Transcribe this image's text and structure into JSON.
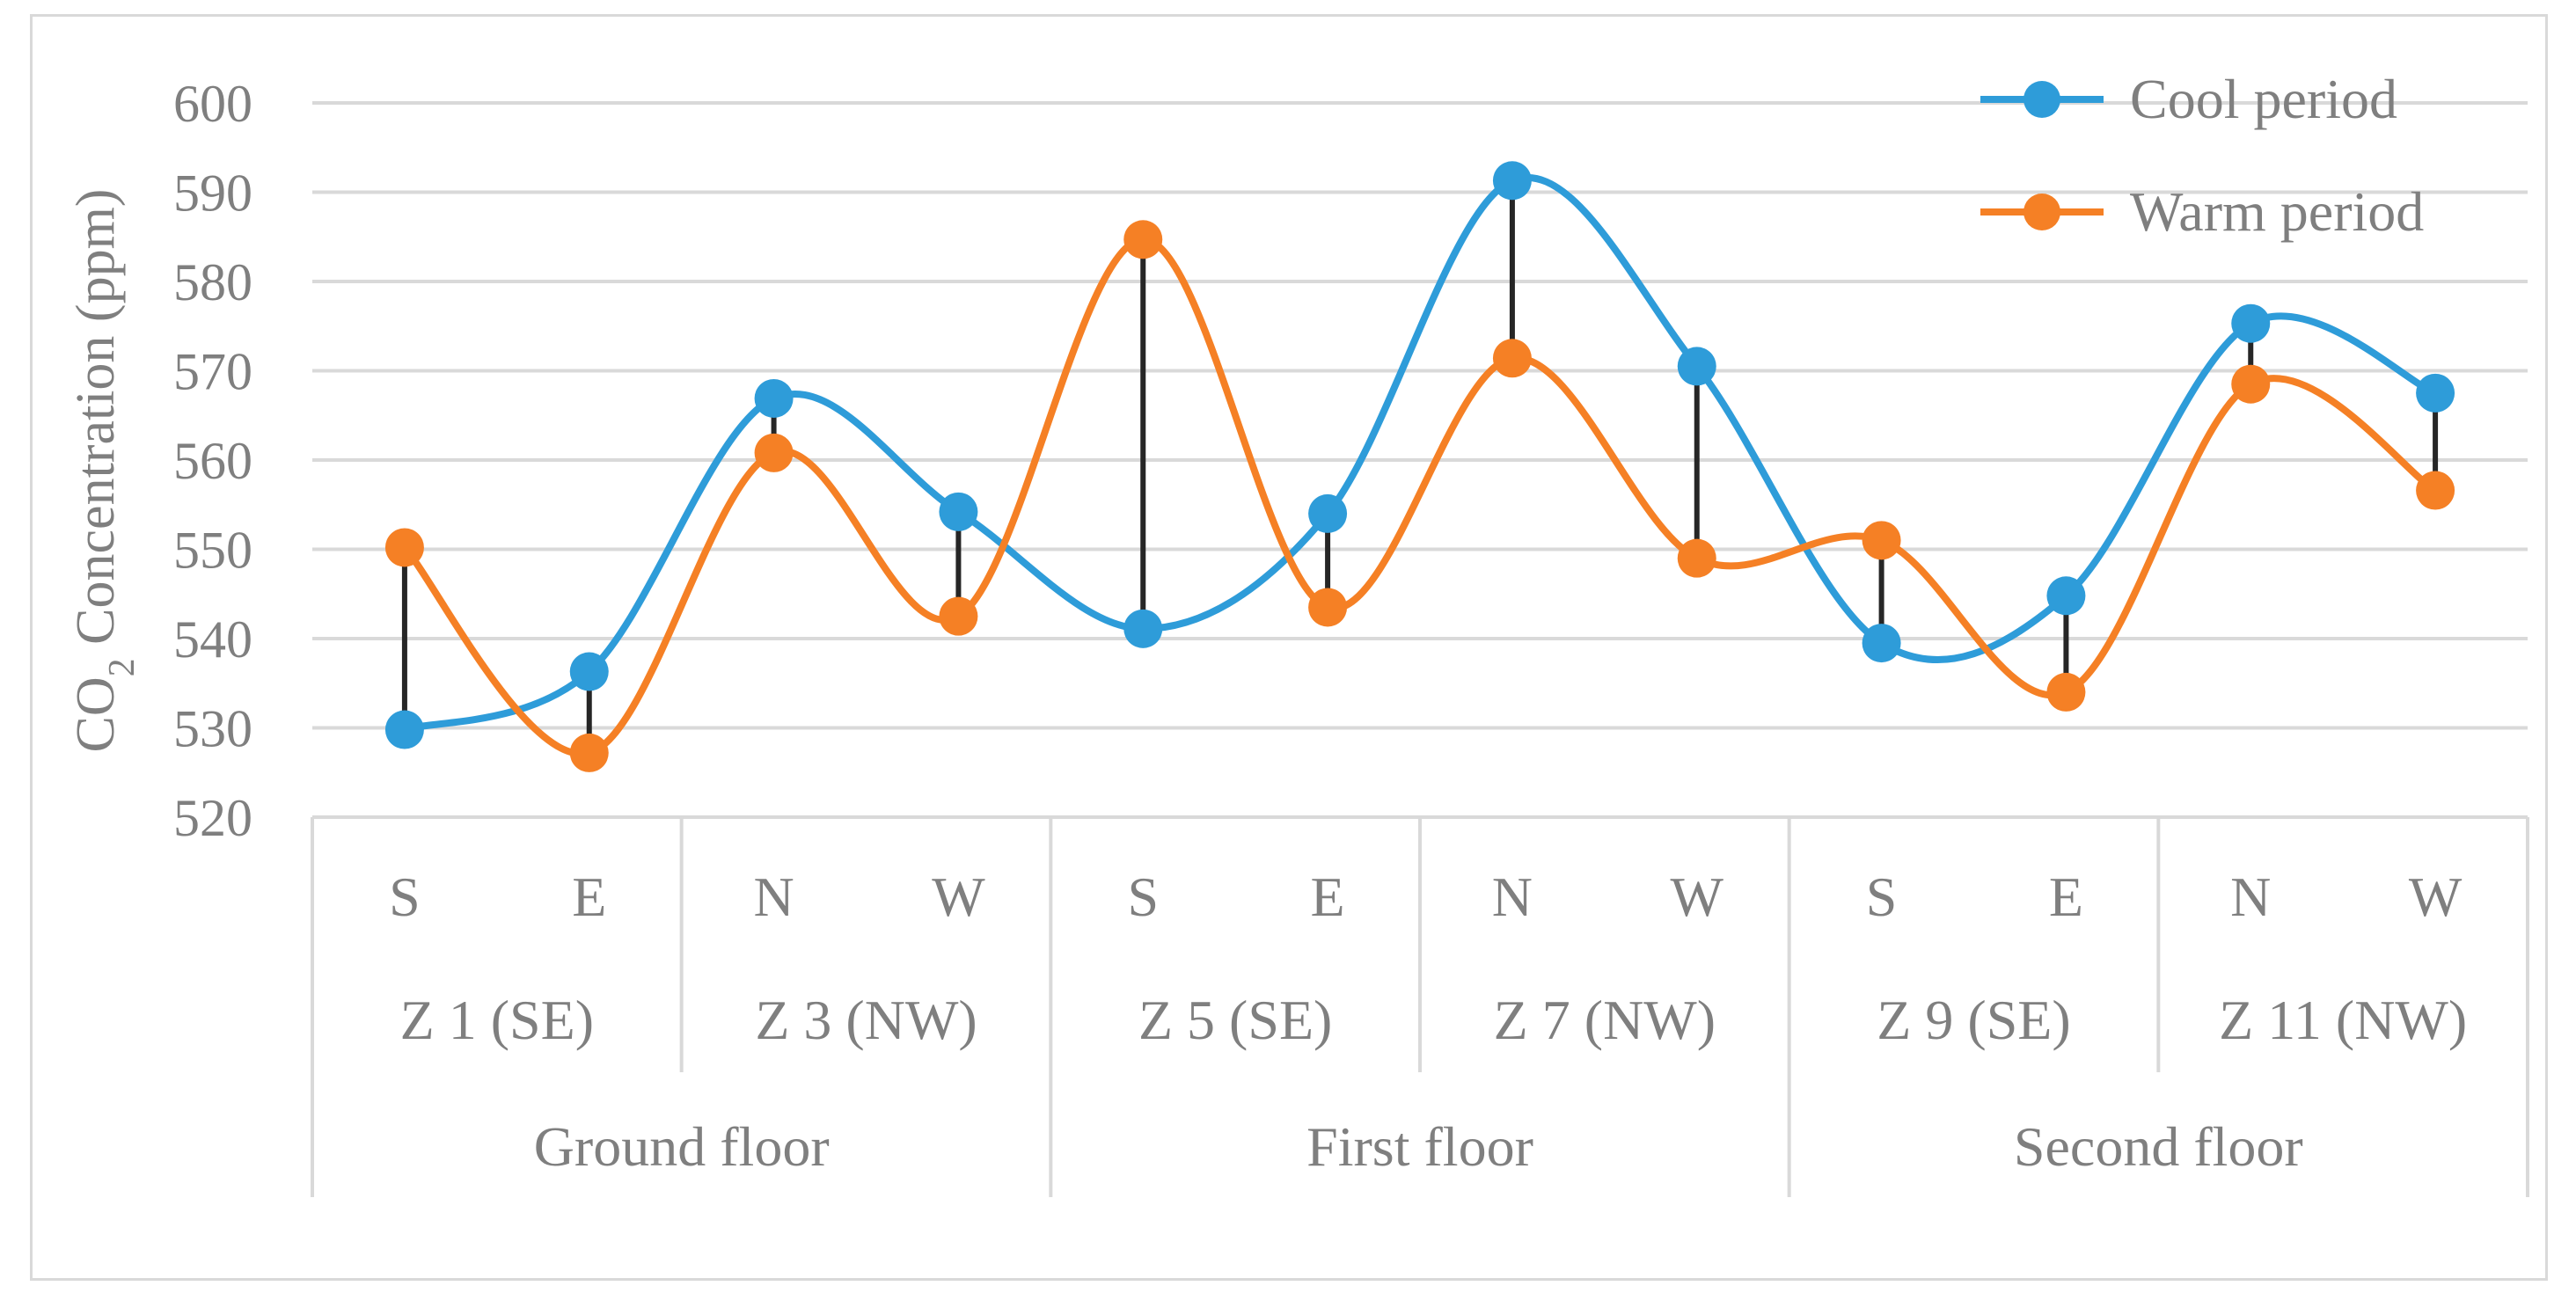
{
  "chart_data": {
    "type": "line",
    "title": "",
    "ylabel": "CO2 Concentration (ppm)",
    "ylabel_main": "CO",
    "ylabel_sub": "2",
    "ylabel_rest": " Concentration (ppm)",
    "ylim": [
      520,
      600
    ],
    "yticks": [
      520,
      530,
      540,
      550,
      560,
      570,
      580,
      590,
      600
    ],
    "grid": true,
    "legend_position": "top-right",
    "categories": [
      "S",
      "E",
      "N",
      "W",
      "S",
      "E",
      "N",
      "W",
      "S",
      "E",
      "N",
      "W"
    ],
    "zones": [
      "Z 1 (SE)",
      "Z 3 (NW)",
      "Z 5 (SE)",
      "Z 7 (NW)",
      "Z 9 (SE)",
      "Z 11 (NW)"
    ],
    "floors": [
      "Ground floor",
      "First floor",
      "Second floor"
    ],
    "series": [
      {
        "name": "Cool period",
        "color": "#2e9cd9",
        "values": [
          529.8,
          536.3,
          566.9,
          554.2,
          541.1,
          554.0,
          591.3,
          570.5,
          539.5,
          544.8,
          575.3,
          567.5
        ]
      },
      {
        "name": "Warm period",
        "color": "#f58025",
        "values": [
          550.2,
          527.2,
          560.8,
          542.5,
          584.7,
          543.5,
          571.4,
          549.0,
          551.0,
          534.0,
          568.5,
          556.6
        ]
      }
    ],
    "difference_bar_color": "#262626"
  }
}
